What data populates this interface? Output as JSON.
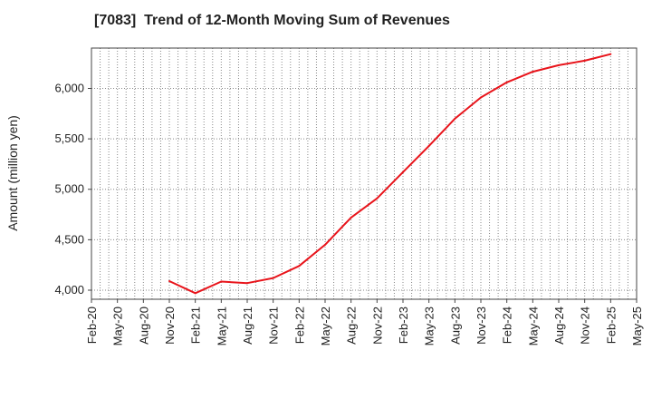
{
  "chart_data": {
    "type": "line",
    "title": "[7083]  Trend of 12-Month Moving Sum of Revenues",
    "xlabel": "",
    "ylabel": "Amount (million yen)",
    "x_ticks": [
      "Feb-20",
      "May-20",
      "Aug-20",
      "Nov-20",
      "Feb-21",
      "May-21",
      "Aug-21",
      "Nov-21",
      "Feb-22",
      "May-22",
      "Aug-22",
      "Nov-22",
      "Feb-23",
      "May-23",
      "Aug-23",
      "Nov-23",
      "Feb-24",
      "May-24",
      "Aug-24",
      "Nov-24",
      "Feb-25",
      "May-25"
    ],
    "y_ticks": [
      4000,
      4500,
      5000,
      5500,
      6000
    ],
    "y_tick_labels": [
      "4,000",
      "4,500",
      "5,000",
      "5,500",
      "6,000"
    ],
    "ylim": [
      3910,
      6400
    ],
    "grid": true,
    "series": [
      {
        "color": "#e8141b",
        "x": [
          "Nov-20",
          "Feb-21",
          "May-21",
          "Aug-21",
          "Nov-21",
          "Feb-22",
          "May-22",
          "Aug-22",
          "Nov-22",
          "Feb-23",
          "May-23",
          "Aug-23",
          "Nov-23",
          "Feb-24",
          "May-24",
          "Aug-24",
          "Nov-24",
          "Feb-25"
        ],
        "values": [
          4090,
          3970,
          4085,
          4070,
          4120,
          4240,
          4450,
          4720,
          4910,
          5170,
          5430,
          5700,
          5910,
          6060,
          6165,
          6230,
          6275,
          6340
        ]
      }
    ]
  }
}
